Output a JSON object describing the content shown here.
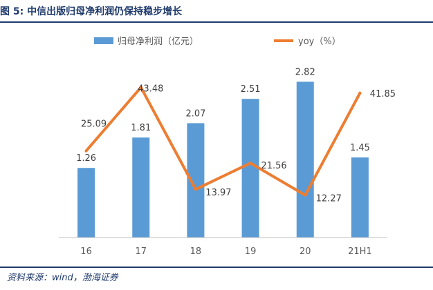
{
  "figure": {
    "title": "图 5:  中信出版归母净利润仍保持稳步增长",
    "source": "资料来源：wind，渤海证券"
  },
  "chart_data": {
    "type": "bar+line",
    "categories": [
      "16",
      "17",
      "18",
      "19",
      "20",
      "21H1"
    ],
    "series": [
      {
        "name": "归母净利润（亿元）",
        "type": "bar",
        "color": "#5b9bd5",
        "values": [
          1.26,
          1.81,
          2.07,
          2.51,
          2.82,
          1.45
        ],
        "labels": [
          "1.26",
          "1.81",
          "2.07",
          "2.51",
          "2.82",
          "1.45"
        ]
      },
      {
        "name": "yoy（%）",
        "type": "line",
        "color": "#ed7d31",
        "values": [
          25.09,
          43.48,
          13.97,
          21.56,
          12.27,
          41.85
        ],
        "labels": [
          "25.09",
          "43.48",
          "13.97",
          "21.56",
          "12.27",
          "41.85"
        ]
      }
    ],
    "bar_ylim": [
      0,
      3.0
    ],
    "line_ylim": [
      0,
      50
    ],
    "grid": false,
    "legend_position": "top"
  }
}
